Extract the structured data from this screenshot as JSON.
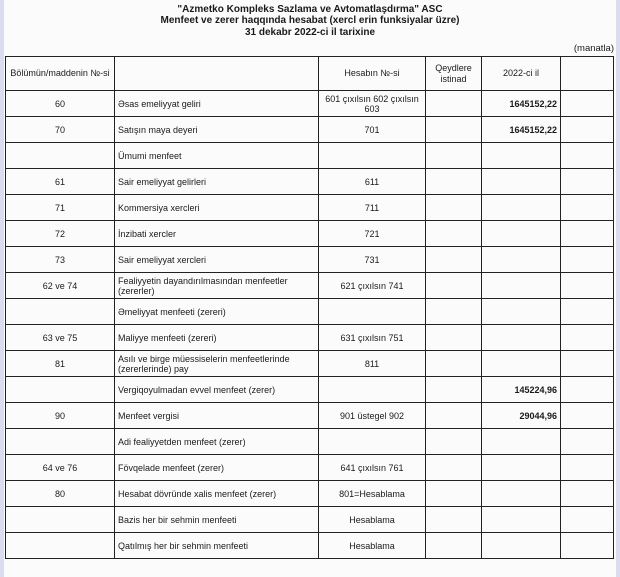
{
  "header": {
    "company": "\"Azmetko Kompleks Sazlama ve Avtomatlaşdırma\" ASC",
    "title": "Menfeet ve zerer haqqında hesabat (xercl erin funksiyalar üzre)",
    "date": "31 dekabr 2022-ci il tarixine",
    "unit": "(manatla)"
  },
  "columns": [
    "Bölümün/maddenin №-si",
    "",
    "Hesabın №-si",
    "Qeydlere istinad",
    "2022-ci il",
    ""
  ],
  "rows": [
    {
      "code": "60",
      "name": "Əsas emeliyyat geliri",
      "account": "601 çıxılsın 602 çıxılsın 603",
      "note": "",
      "value": "1645152,22"
    },
    {
      "code": "70",
      "name": "Satışın maya deyeri",
      "account": "701",
      "note": "",
      "value": "1645152,22"
    },
    {
      "code": "",
      "name": "Ümumi menfeet",
      "account": "",
      "note": "",
      "value": ""
    },
    {
      "code": "61",
      "name": "Sair emeliyyat gelirleri",
      "account": "611",
      "note": "",
      "value": ""
    },
    {
      "code": "71",
      "name": "Kommersiya xercleri",
      "account": "711",
      "note": "",
      "value": ""
    },
    {
      "code": "72",
      "name": "İnzibati xercler",
      "account": "721",
      "note": "",
      "value": ""
    },
    {
      "code": "73",
      "name": "Sair emeliyyat xercleri",
      "account": "731",
      "note": "",
      "value": ""
    },
    {
      "code": "62 ve 74",
      "name": "Fealiyyetin dayandırılmasından menfeetler (zererler)",
      "account": "621 çıxılsın 741",
      "note": "",
      "value": ""
    },
    {
      "code": "",
      "name": "Əmeliyyat menfeeti (zereri)",
      "account": "",
      "note": "",
      "value": ""
    },
    {
      "code": "63 ve 75",
      "name": "Maliyye menfeeti (zereri)",
      "account": "631 çıxılsın 751",
      "note": "",
      "value": ""
    },
    {
      "code": "81",
      "name": "Asılı ve birge müessiselerin menfeetlerinde (zererlerinde) pay",
      "account": "811",
      "note": "",
      "value": ""
    },
    {
      "code": "",
      "name": "Vergiqoyulmadan evvel menfeet (zerer)",
      "account": "",
      "note": "",
      "value": "145224,96"
    },
    {
      "code": "90",
      "name": "Menfeet vergisi",
      "account": "901 üstegel 902",
      "note": "",
      "value": "29044,96"
    },
    {
      "code": "",
      "name": "Adi fealiyyetden menfeet (zerer)",
      "account": "",
      "note": "",
      "value": ""
    },
    {
      "code": "64 ve 76",
      "name": "Fövqelade menfeet (zerer)",
      "account": "641 çıxılsın 761",
      "note": "",
      "value": ""
    },
    {
      "code": "80",
      "name": "Hesabat dövründe xalis menfeet (zerer)",
      "account": "801=Hesablama",
      "note": "",
      "value": ""
    },
    {
      "code": "",
      "name": "Bazis her bir sehmin menfeeti",
      "account": "Hesablama",
      "note": "",
      "value": ""
    },
    {
      "code": "",
      "name": "Qatılmış her bir sehmin menfeeti",
      "account": "Hesablama",
      "note": "",
      "value": ""
    }
  ]
}
